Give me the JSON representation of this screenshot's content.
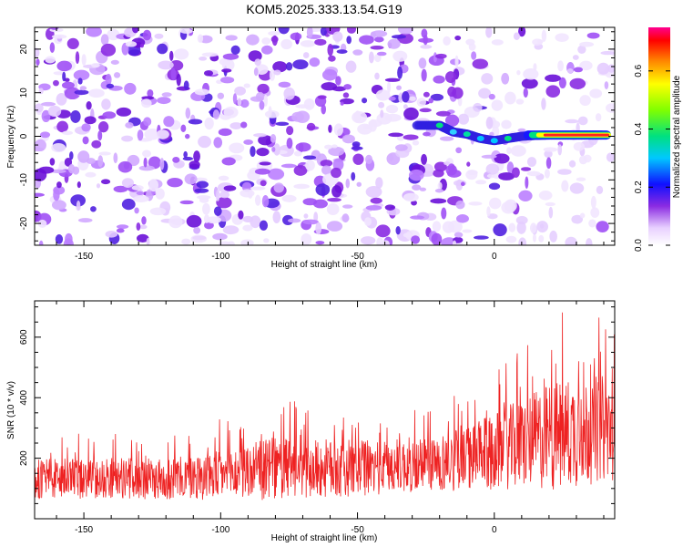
{
  "chart_data": [
    {
      "type": "heatmap",
      "title": "KOM5.2025.333.13.54.G19",
      "xlabel": "Height of straight line (km)",
      "ylabel": "Frequency (Hz)",
      "xlim": [
        -168,
        44
      ],
      "ylim": [
        -25,
        25
      ],
      "xticks": [
        -150,
        -100,
        -50,
        0
      ],
      "xtick_labels": [
        "-150",
        "-100",
        "-50",
        "0"
      ],
      "yticks": [
        -20,
        -10,
        0,
        10,
        20
      ],
      "ytick_labels": [
        "-20",
        "-10",
        "0",
        "10",
        "20"
      ],
      "feature": {
        "description_points_x": [
          -28,
          -20,
          -15,
          -10,
          -5,
          0,
          5,
          10,
          15,
          20,
          30,
          40
        ],
        "description_points_y": [
          2.5,
          2.5,
          1.0,
          0.5,
          -0.5,
          -1.0,
          -0.5,
          0,
          0.2,
          0.3,
          0.3,
          0.3
        ]
      },
      "colorbar": {
        "label": "Normalized spectral amplitude",
        "ticks": [
          0.0,
          0.2,
          0.4,
          0.6
        ],
        "tick_labels": [
          "0.0",
          "0.2",
          "0.4",
          "0.6"
        ],
        "range": [
          0.0,
          0.75
        ]
      }
    },
    {
      "type": "line",
      "title": "",
      "xlabel": "Height of straight line (km)",
      "ylabel": "SNR (10 * v/v)",
      "xlim": [
        -168,
        44
      ],
      "ylim": [
        0,
        720
      ],
      "xticks": [
        -150,
        -100,
        -50,
        0
      ],
      "xtick_labels": [
        "-150",
        "-100",
        "-50",
        "0"
      ],
      "yticks": [
        200,
        400,
        600
      ],
      "ytick_labels": [
        "200",
        "400",
        "600"
      ],
      "series": [
        {
          "name": "SNR",
          "color": "#ee2222",
          "envelope_x": [
            -168,
            -140,
            -120,
            -100,
            -80,
            -60,
            -40,
            -20,
            -10,
            0,
            10,
            20,
            30,
            44
          ],
          "envelope_mean": [
            130,
            135,
            130,
            145,
            165,
            165,
            170,
            185,
            200,
            220,
            250,
            270,
            290,
            300
          ],
          "envelope_amp": [
            90,
            90,
            90,
            110,
            140,
            130,
            120,
            130,
            140,
            170,
            200,
            240,
            250,
            230
          ]
        }
      ]
    }
  ]
}
